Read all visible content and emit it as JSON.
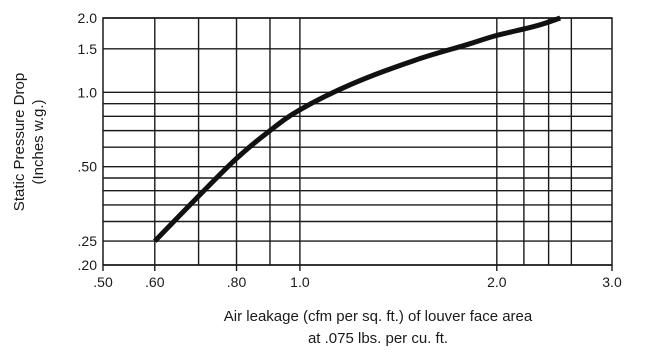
{
  "chart_data": {
    "type": "line",
    "title": "",
    "xscale": "log",
    "yscale": "log",
    "xlim": [
      0.5,
      3.0
    ],
    "ylim": [
      0.2,
      2.0
    ],
    "grid": true,
    "ylabel_lines": [
      "Static Pressure Drop",
      "(Inches w.g.)"
    ],
    "xlabel_lines": [
      "Air leakage (cfm per sq. ft.) of louver face area",
      "at .075 lbs. per cu. ft."
    ],
    "x_ticks": [
      {
        "value": 0.5,
        "label": ".50"
      },
      {
        "value": 0.6,
        "label": ".60"
      },
      {
        "value": 0.8,
        "label": ".80"
      },
      {
        "value": 1.0,
        "label": "1.0"
      },
      {
        "value": 2.0,
        "label": "2.0"
      },
      {
        "value": 3.0,
        "label": "3.0"
      }
    ],
    "y_ticks": [
      {
        "value": 0.2,
        "label": ".20"
      },
      {
        "value": 0.25,
        "label": ".25"
      },
      {
        "value": 0.5,
        "label": ".50"
      },
      {
        "value": 1.0,
        "label": "1.0"
      },
      {
        "value": 1.5,
        "label": "1.5"
      },
      {
        "value": 2.0,
        "label": "2.0"
      }
    ],
    "x_gridlines": [
      0.6,
      0.7,
      0.8,
      0.9,
      1.0,
      2.0,
      2.2,
      2.4,
      2.6
    ],
    "y_gridlines": [
      0.2,
      0.25,
      0.3,
      0.35,
      0.4,
      0.45,
      0.5,
      0.6,
      0.7,
      0.8,
      0.9,
      1.0,
      1.5,
      2.0
    ],
    "series": [
      {
        "x": [
          0.6,
          0.7,
          0.8,
          0.9,
          1.0,
          1.2,
          1.5,
          1.8,
          2.0,
          2.3,
          2.5
        ],
        "y": [
          0.25,
          0.38,
          0.54,
          0.7,
          0.85,
          1.08,
          1.35,
          1.56,
          1.7,
          1.86,
          2.0
        ]
      }
    ],
    "colors": {
      "grid": "#1a1a1a",
      "line": "#111111",
      "text": "#1a1a1a"
    }
  }
}
